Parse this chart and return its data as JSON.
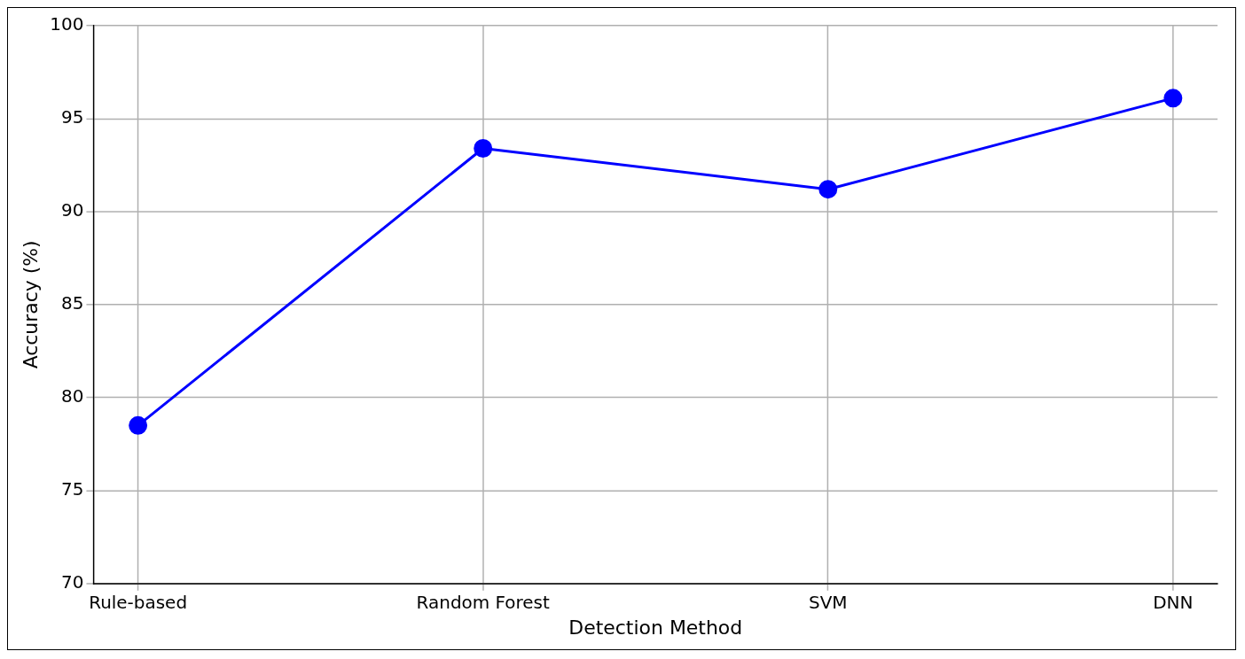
{
  "chart_data": {
    "type": "line",
    "xlabel": "Detection Method",
    "ylabel": "Accuracy (%)",
    "categories": [
      "Rule-based",
      "Random Forest",
      "SVM",
      "DNN"
    ],
    "series": [
      {
        "color": "#0000ff",
        "values": [
          78.5,
          93.4,
          91.2,
          96.1
        ]
      }
    ],
    "ylim": [
      70,
      100
    ],
    "yticks": [
      70,
      75,
      80,
      85,
      90,
      95,
      100
    ],
    "grid": true,
    "legend": false,
    "marker": "circle",
    "line_style": "solid"
  }
}
